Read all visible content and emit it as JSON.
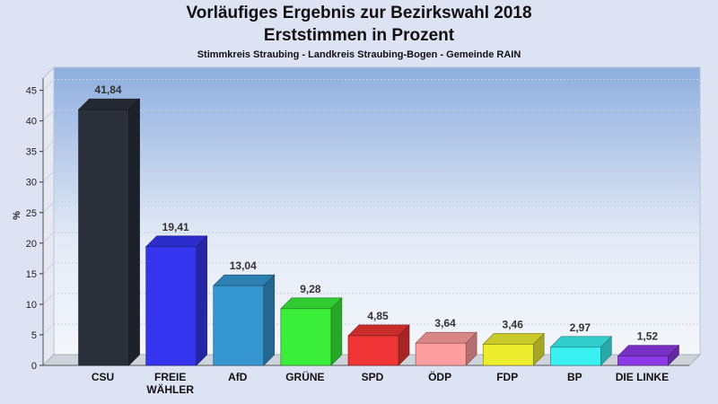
{
  "chart_data": {
    "type": "bar",
    "title": "Vorläufiges Ergebnis zur Bezirkswahl 2018",
    "subtitle": "Erststimmen in Prozent",
    "caption": "Stimmkreis Straubing - Landkreis Straubing-Bogen - Gemeinde RAIN",
    "ylabel": "%",
    "xlabel": "",
    "ylim": [
      0,
      47
    ],
    "yticks": [
      0,
      5,
      10,
      15,
      20,
      25,
      30,
      35,
      40,
      45
    ],
    "grid": true,
    "categories": [
      "CSU",
      "FREIE WÄHLER",
      "AfD",
      "GRÜNE",
      "SPD",
      "ÖDP",
      "FDP",
      "BP",
      "DIE LINKE"
    ],
    "category_lines": [
      [
        "CSU"
      ],
      [
        "FREIE",
        "WÄHLER"
      ],
      [
        "AfD"
      ],
      [
        "GRÜNE"
      ],
      [
        "SPD"
      ],
      [
        "ÖDP"
      ],
      [
        "FDP"
      ],
      [
        "BP"
      ],
      [
        "DIE LINKE"
      ]
    ],
    "values": [
      41.84,
      19.41,
      13.04,
      9.28,
      4.85,
      3.64,
      3.46,
      2.97,
      1.52
    ],
    "value_labels": [
      "41,84",
      "19,41",
      "13,04",
      "9,28",
      "4,85",
      "3,64",
      "3,46",
      "2,97",
      "1,52"
    ],
    "colors": [
      "#2a2f3a",
      "#3535f0",
      "#3596d0",
      "#3aee3a",
      "#ef3535",
      "#ff9e9e",
      "#eded30",
      "#3af0f0",
      "#8e3ae8"
    ]
  }
}
